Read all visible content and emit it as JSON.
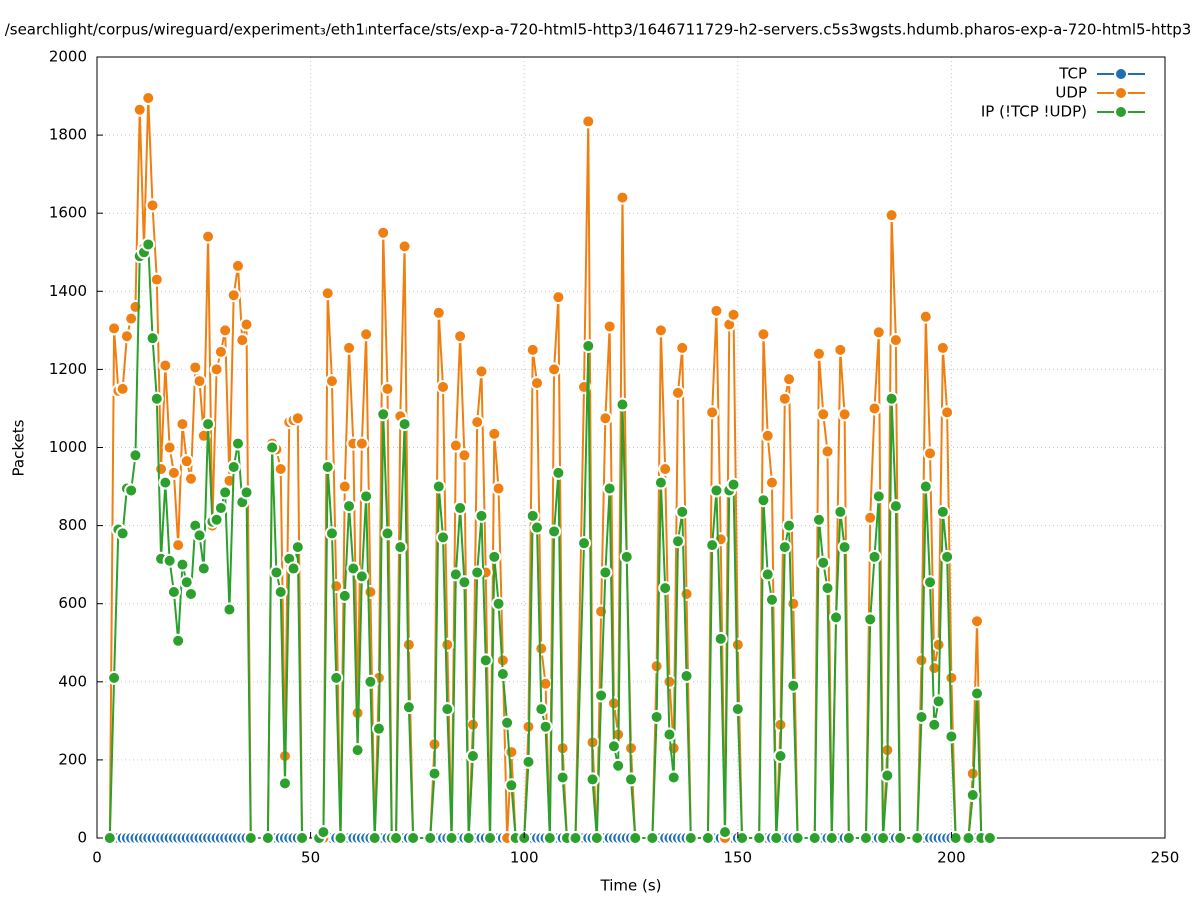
{
  "chart_data": {
    "type": "line",
    "title": "/searchlight/corpus/wireguard/experiment₃/eth1ᵢnterface/sts/exp-a-720-html5-http3/1646711729-h2-servers.c5s3wgsts.hdumb.pharos-exp-a-720-html5-http3",
    "xlabel": "Time (s)",
    "ylabel": "Packets",
    "xlim": [
      0,
      250
    ],
    "xticks": [
      0,
      50,
      100,
      150,
      200,
      250
    ],
    "ylim": [
      0,
      2000
    ],
    "yticks": [
      0,
      200,
      400,
      600,
      800,
      1000,
      1200,
      1400,
      1600,
      1800,
      2000
    ],
    "grid": true,
    "legend": "top-right",
    "x": [
      3,
      4,
      5,
      6,
      7,
      8,
      9,
      10,
      11,
      12,
      13,
      14,
      15,
      16,
      17,
      18,
      19,
      20,
      21,
      22,
      23,
      24,
      25,
      26,
      27,
      28,
      29,
      30,
      31,
      32,
      33,
      34,
      35,
      36,
      38,
      40,
      41,
      42,
      43,
      44,
      45,
      46,
      47,
      48,
      50,
      52,
      53,
      54,
      55,
      56,
      57,
      58,
      59,
      60,
      61,
      62,
      63,
      64,
      65,
      66,
      67,
      68,
      69,
      70,
      71,
      72,
      73,
      74,
      78,
      79,
      80,
      81,
      82,
      83,
      84,
      85,
      86,
      87,
      88,
      89,
      90,
      91,
      92,
      93,
      94,
      95,
      96,
      97,
      98,
      100,
      101,
      102,
      103,
      104,
      105,
      106,
      107,
      108,
      109,
      110,
      112,
      114,
      115,
      116,
      117,
      118,
      119,
      120,
      121,
      122,
      123,
      124,
      125,
      126,
      130,
      131,
      132,
      133,
      134,
      135,
      136,
      137,
      138,
      139,
      143,
      144,
      145,
      146,
      147,
      148,
      149,
      150,
      151,
      155,
      156,
      157,
      158,
      159,
      160,
      161,
      162,
      163,
      164,
      168,
      169,
      170,
      171,
      172,
      173,
      174,
      175,
      176,
      180,
      181,
      182,
      183,
      184,
      185,
      186,
      187,
      188,
      192,
      193,
      194,
      195,
      196,
      197,
      198,
      199,
      200,
      201,
      204,
      205,
      206,
      207,
      209
    ],
    "series": [
      {
        "name": "TCP",
        "color": "#1f6fb4",
        "values": [
          0,
          0,
          0,
          0,
          0,
          0,
          0,
          0,
          0,
          0,
          0,
          0,
          0,
          0,
          0,
          0,
          0,
          0,
          0,
          0,
          0,
          0,
          0,
          0,
          0,
          0,
          0,
          0,
          0,
          0,
          0,
          0,
          0,
          0,
          null,
          0,
          0,
          0,
          0,
          0,
          0,
          0,
          0,
          0,
          null,
          0,
          0,
          0,
          0,
          0,
          0,
          0,
          0,
          0,
          0,
          0,
          0,
          0,
          0,
          0,
          0,
          0,
          0,
          0,
          0,
          0,
          0,
          0,
          0,
          0,
          0,
          0,
          0,
          0,
          0,
          0,
          0,
          0,
          0,
          0,
          0,
          0,
          0,
          0,
          0,
          0,
          0,
          0,
          0,
          0,
          0,
          0,
          0,
          0,
          0,
          0,
          0,
          0,
          0,
          0,
          0,
          0,
          0,
          0,
          0,
          0,
          0,
          0,
          0,
          0,
          0,
          0,
          0,
          0,
          0,
          0,
          0,
          0,
          0,
          0,
          0,
          0,
          0,
          0,
          0,
          0,
          0,
          0,
          0,
          0,
          0,
          0,
          0,
          0,
          0,
          0,
          0,
          0,
          0,
          0,
          0,
          0,
          0,
          0,
          0,
          0,
          0,
          0,
          0,
          0,
          0,
          0,
          0,
          0,
          0,
          0,
          0,
          0,
          0,
          0,
          0,
          0,
          0,
          0,
          0,
          0,
          0,
          0,
          0,
          0,
          0,
          0,
          0,
          0,
          0,
          0
        ]
      },
      {
        "name": "UDP",
        "color": "#f07f12",
        "values": [
          0,
          1305,
          1145,
          1150,
          1285,
          1330,
          1360,
          1865,
          1510,
          1895,
          1620,
          1430,
          945,
          1210,
          1000,
          935,
          750,
          1060,
          965,
          920,
          1205,
          1170,
          1030,
          1540,
          800,
          1200,
          1245,
          1300,
          915,
          1390,
          1465,
          1275,
          1315,
          0,
          null,
          0,
          1010,
          995,
          945,
          210,
          1065,
          1070,
          1075,
          0,
          null,
          0,
          0,
          1395,
          1170,
          645,
          0,
          900,
          1255,
          1010,
          320,
          1010,
          1290,
          630,
          0,
          410,
          1550,
          1150,
          0,
          0,
          1080,
          1515,
          495,
          0,
          0,
          240,
          1345,
          1155,
          495,
          0,
          1005,
          1285,
          980,
          0,
          290,
          1065,
          1195,
          680,
          0,
          1035,
          895,
          455,
          0,
          220,
          0,
          0,
          285,
          1250,
          1165,
          485,
          395,
          0,
          1200,
          1385,
          230,
          0,
          0,
          1155,
          1835,
          245,
          0,
          580,
          1075,
          1310,
          345,
          265,
          1640,
          720,
          230,
          0,
          0,
          440,
          1300,
          945,
          400,
          230,
          1140,
          1255,
          625,
          0,
          0,
          1090,
          1350,
          765,
          0,
          1315,
          1340,
          495,
          0,
          0,
          1290,
          1030,
          910,
          0,
          290,
          1125,
          1175,
          600,
          0,
          0,
          1240,
          1085,
          990,
          0,
          565,
          1250,
          1085,
          0,
          0,
          820,
          1100,
          1295,
          0,
          225,
          1595,
          1275,
          0,
          0,
          455,
          1335,
          985,
          435,
          495,
          1255,
          1090,
          410,
          0,
          0,
          165,
          555,
          0,
          0
        ]
      },
      {
        "name": "IP (!TCP  !UDP)",
        "color": "#2ca02c",
        "values": [
          0,
          410,
          790,
          780,
          895,
          890,
          980,
          1490,
          1500,
          1520,
          1280,
          1125,
          715,
          910,
          710,
          630,
          505,
          700,
          655,
          625,
          800,
          775,
          690,
          1060,
          810,
          815,
          845,
          885,
          585,
          950,
          1010,
          860,
          885,
          0,
          null,
          0,
          1000,
          680,
          630,
          140,
          715,
          690,
          745,
          0,
          null,
          0,
          15,
          950,
          780,
          410,
          0,
          620,
          850,
          690,
          225,
          670,
          875,
          400,
          0,
          280,
          1085,
          780,
          0,
          0,
          745,
          1060,
          335,
          0,
          0,
          165,
          900,
          770,
          330,
          0,
          675,
          845,
          655,
          0,
          210,
          680,
          825,
          455,
          0,
          720,
          600,
          420,
          295,
          135,
          0,
          0,
          195,
          825,
          795,
          330,
          285,
          0,
          785,
          935,
          155,
          0,
          0,
          755,
          1260,
          150,
          0,
          365,
          680,
          895,
          235,
          185,
          1110,
          720,
          150,
          0,
          0,
          310,
          910,
          640,
          265,
          155,
          760,
          835,
          415,
          0,
          0,
          750,
          890,
          510,
          15,
          890,
          905,
          330,
          0,
          0,
          865,
          675,
          610,
          0,
          210,
          745,
          800,
          390,
          0,
          0,
          815,
          705,
          640,
          0,
          565,
          835,
          745,
          0,
          0,
          560,
          720,
          875,
          0,
          160,
          1125,
          850,
          0,
          0,
          310,
          900,
          655,
          290,
          350,
          835,
          720,
          260,
          0,
          0,
          110,
          370,
          0,
          0
        ]
      }
    ]
  }
}
